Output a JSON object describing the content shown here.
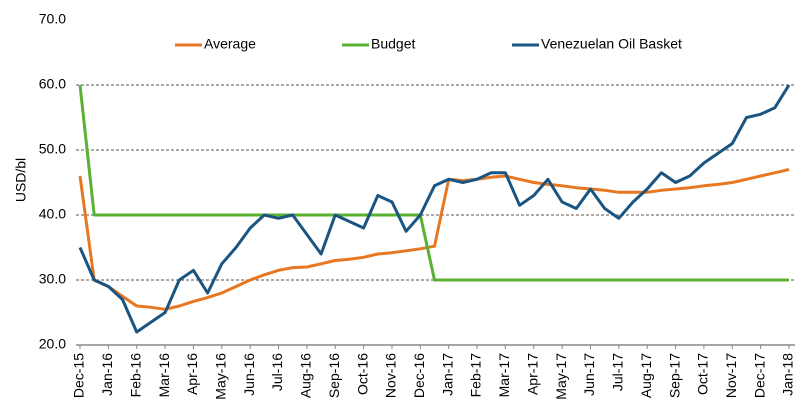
{
  "chart_data": {
    "type": "line",
    "y_label": "USD/bl",
    "categories": [
      "Dec-15",
      null,
      "Jan-16",
      null,
      "Feb-16",
      null,
      "Mar-16",
      null,
      "Apr-16",
      null,
      "May-16",
      null,
      "Jun-16",
      null,
      "Jul-16",
      null,
      "Aug-16",
      null,
      "Sep-16",
      null,
      "Oct-16",
      null,
      "Nov-16",
      null,
      "Dec-16",
      null,
      "Jan-17",
      null,
      "Feb-17",
      null,
      "Mar-17",
      null,
      "Apr-17",
      null,
      "May-17",
      null,
      "Jun-17",
      null,
      "Jul-17",
      null,
      "Aug-17",
      null,
      "Sep-17",
      null,
      "Oct-17",
      null,
      "Nov-17",
      null,
      "Dec-17",
      null,
      "Jan-18"
    ],
    "series": [
      {
        "name": "Average",
        "color": "#e87722",
        "values": [
          46,
          30,
          29,
          27.5,
          26,
          25.8,
          25.5,
          26,
          26.7,
          27.3,
          28,
          29,
          30,
          30.8,
          31.5,
          31.9,
          32,
          32.5,
          33,
          33.2,
          33.5,
          34,
          34.2,
          34.5,
          34.8,
          35.2,
          45.5,
          45.3,
          45.5,
          45.8,
          46,
          45.5,
          45,
          44.7,
          44.5,
          44.2,
          44,
          43.8,
          43.5,
          43.5,
          43.5,
          43.8,
          44,
          44.2,
          44.5,
          44.7,
          45,
          45.5,
          46,
          46.5,
          47
        ]
      },
      {
        "name": "Budget",
        "color": "#5ab031",
        "values": [
          60,
          40,
          40,
          40,
          40,
          40,
          40,
          40,
          40,
          40,
          40,
          40,
          40,
          40,
          40,
          40,
          40,
          40,
          40,
          40,
          40,
          40,
          40,
          40,
          40,
          30,
          30,
          30,
          30,
          30,
          30,
          30,
          30,
          30,
          30,
          30,
          30,
          30,
          30,
          30,
          30,
          30,
          30,
          30,
          30,
          30,
          30,
          30,
          30,
          30,
          30
        ]
      },
      {
        "name": "Venezuelan Oil Basket",
        "color": "#1a5582",
        "values": [
          35,
          30,
          29,
          27,
          22,
          23.5,
          25,
          30,
          31.5,
          28,
          32.5,
          35,
          38,
          40,
          39.5,
          40,
          37,
          34,
          40,
          39,
          38,
          43,
          42,
          37.5,
          40,
          44.5,
          45.5,
          45,
          45.5,
          46.5,
          46.5,
          41.5,
          43,
          45.5,
          42,
          41,
          44,
          41,
          39.5,
          42,
          44,
          46.5,
          45,
          46,
          48,
          49.5,
          51,
          55,
          55.5,
          56.5,
          60
        ]
      }
    ],
    "ylim": [
      20,
      70
    ],
    "yticks": [
      {
        "value": 20,
        "label": "20.0"
      },
      {
        "value": 30,
        "label": "30.0"
      },
      {
        "value": 40,
        "label": "40.0"
      },
      {
        "value": 50,
        "label": "50.0"
      },
      {
        "value": 60,
        "label": "60.0"
      },
      {
        "value": 70,
        "label": "70.0"
      }
    ],
    "grid": true,
    "legend": "top"
  }
}
